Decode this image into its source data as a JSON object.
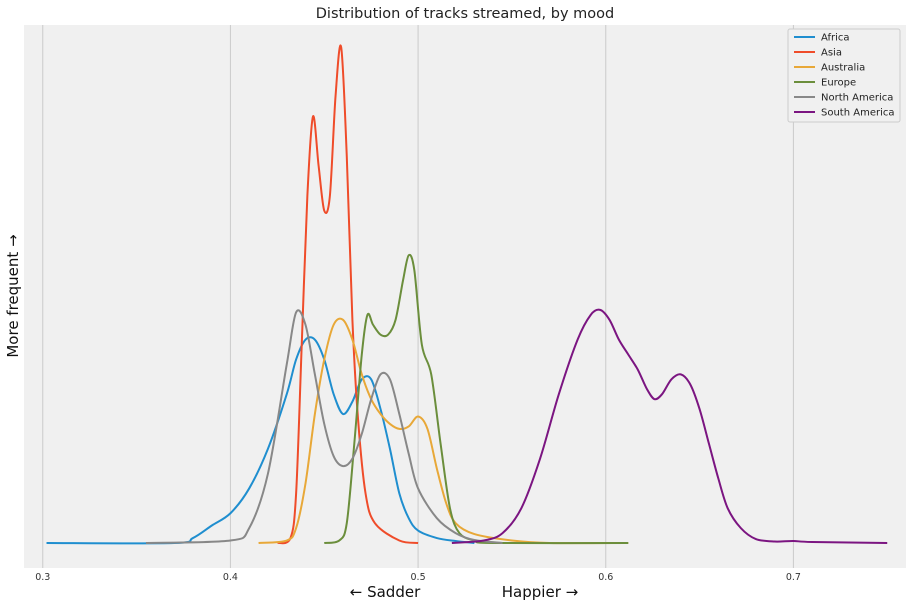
{
  "chart_data": {
    "type": "line",
    "title": "Distribution of tracks streamed, by mood",
    "xlabel_left": "← Sadder",
    "xlabel_right": "Happier →",
    "ylabel": "More frequent →",
    "xlim": [
      0.29,
      0.76
    ],
    "ylim": [
      0,
      1.05
    ],
    "x_ticks": [
      "0.3",
      "0.4",
      "0.5",
      "0.6",
      "0.7"
    ],
    "x_tick_values": [
      0.3,
      0.4,
      0.5,
      0.6,
      0.7
    ],
    "grid": "vertical",
    "legend_position": "top-right",
    "series": [
      {
        "name": "Africa",
        "color": "#1f8ecf",
        "points": [
          [
            0.302,
            0.0
          ],
          [
            0.37,
            0.0
          ],
          [
            0.38,
            0.01
          ],
          [
            0.39,
            0.035
          ],
          [
            0.4,
            0.06
          ],
          [
            0.41,
            0.11
          ],
          [
            0.42,
            0.19
          ],
          [
            0.43,
            0.3
          ],
          [
            0.435,
            0.37
          ],
          [
            0.44,
            0.41
          ],
          [
            0.445,
            0.41
          ],
          [
            0.45,
            0.37
          ],
          [
            0.455,
            0.3
          ],
          [
            0.46,
            0.26
          ],
          [
            0.465,
            0.285
          ],
          [
            0.47,
            0.33
          ],
          [
            0.475,
            0.33
          ],
          [
            0.48,
            0.27
          ],
          [
            0.485,
            0.19
          ],
          [
            0.49,
            0.1
          ],
          [
            0.495,
            0.05
          ],
          [
            0.5,
            0.025
          ],
          [
            0.51,
            0.01
          ],
          [
            0.52,
            0.004
          ],
          [
            0.53,
            0.0
          ]
        ]
      },
      {
        "name": "Asia",
        "color": "#ef4c2a",
        "points": [
          [
            0.425,
            0.0
          ],
          [
            0.432,
            0.01
          ],
          [
            0.435,
            0.1
          ],
          [
            0.438,
            0.4
          ],
          [
            0.441,
            0.7
          ],
          [
            0.444,
            0.86
          ],
          [
            0.447,
            0.76
          ],
          [
            0.45,
            0.67
          ],
          [
            0.453,
            0.7
          ],
          [
            0.456,
            0.9
          ],
          [
            0.459,
            1.0
          ],
          [
            0.462,
            0.78
          ],
          [
            0.465,
            0.45
          ],
          [
            0.468,
            0.25
          ],
          [
            0.472,
            0.1
          ],
          [
            0.477,
            0.04
          ],
          [
            0.49,
            0.005
          ],
          [
            0.5,
            0.0
          ]
        ]
      },
      {
        "name": "Australia",
        "color": "#e8a838",
        "points": [
          [
            0.415,
            0.0
          ],
          [
            0.43,
            0.005
          ],
          [
            0.435,
            0.03
          ],
          [
            0.44,
            0.12
          ],
          [
            0.445,
            0.26
          ],
          [
            0.45,
            0.37
          ],
          [
            0.455,
            0.44
          ],
          [
            0.46,
            0.45
          ],
          [
            0.465,
            0.41
          ],
          [
            0.47,
            0.34
          ],
          [
            0.475,
            0.29
          ],
          [
            0.48,
            0.26
          ],
          [
            0.485,
            0.24
          ],
          [
            0.49,
            0.23
          ],
          [
            0.495,
            0.235
          ],
          [
            0.5,
            0.255
          ],
          [
            0.505,
            0.23
          ],
          [
            0.51,
            0.15
          ],
          [
            0.515,
            0.08
          ],
          [
            0.52,
            0.04
          ],
          [
            0.53,
            0.018
          ],
          [
            0.55,
            0.005
          ],
          [
            0.57,
            0.0
          ],
          [
            0.612,
            0.0
          ]
        ]
      },
      {
        "name": "Europe",
        "color": "#6b8e3c",
        "points": [
          [
            0.45,
            0.0
          ],
          [
            0.458,
            0.005
          ],
          [
            0.462,
            0.04
          ],
          [
            0.466,
            0.2
          ],
          [
            0.47,
            0.38
          ],
          [
            0.473,
            0.46
          ],
          [
            0.476,
            0.44
          ],
          [
            0.48,
            0.42
          ],
          [
            0.484,
            0.42
          ],
          [
            0.488,
            0.45
          ],
          [
            0.492,
            0.53
          ],
          [
            0.495,
            0.58
          ],
          [
            0.498,
            0.55
          ],
          [
            0.502,
            0.4
          ],
          [
            0.507,
            0.34
          ],
          [
            0.512,
            0.2
          ],
          [
            0.517,
            0.07
          ],
          [
            0.522,
            0.02
          ],
          [
            0.53,
            0.005
          ],
          [
            0.54,
            0.0
          ],
          [
            0.612,
            0.0
          ]
        ]
      },
      {
        "name": "North America",
        "color": "#888888",
        "points": [
          [
            0.355,
            0.0
          ],
          [
            0.4,
            0.005
          ],
          [
            0.41,
            0.03
          ],
          [
            0.42,
            0.14
          ],
          [
            0.43,
            0.36
          ],
          [
            0.435,
            0.465
          ],
          [
            0.44,
            0.44
          ],
          [
            0.445,
            0.34
          ],
          [
            0.45,
            0.24
          ],
          [
            0.455,
            0.175
          ],
          [
            0.46,
            0.155
          ],
          [
            0.465,
            0.17
          ],
          [
            0.47,
            0.22
          ],
          [
            0.475,
            0.29
          ],
          [
            0.48,
            0.34
          ],
          [
            0.485,
            0.33
          ],
          [
            0.49,
            0.26
          ],
          [
            0.495,
            0.18
          ],
          [
            0.5,
            0.11
          ],
          [
            0.51,
            0.05
          ],
          [
            0.52,
            0.02
          ],
          [
            0.53,
            0.006
          ],
          [
            0.545,
            0.0
          ]
        ]
      },
      {
        "name": "South America",
        "color": "#7b1581",
        "points": [
          [
            0.518,
            0.0
          ],
          [
            0.535,
            0.005
          ],
          [
            0.545,
            0.02
          ],
          [
            0.555,
            0.07
          ],
          [
            0.565,
            0.17
          ],
          [
            0.575,
            0.3
          ],
          [
            0.585,
            0.41
          ],
          [
            0.592,
            0.46
          ],
          [
            0.597,
            0.47
          ],
          [
            0.602,
            0.45
          ],
          [
            0.607,
            0.41
          ],
          [
            0.612,
            0.38
          ],
          [
            0.617,
            0.35
          ],
          [
            0.622,
            0.31
          ],
          [
            0.626,
            0.29
          ],
          [
            0.63,
            0.3
          ],
          [
            0.635,
            0.33
          ],
          [
            0.64,
            0.34
          ],
          [
            0.645,
            0.32
          ],
          [
            0.65,
            0.27
          ],
          [
            0.655,
            0.2
          ],
          [
            0.66,
            0.13
          ],
          [
            0.665,
            0.07
          ],
          [
            0.672,
            0.03
          ],
          [
            0.68,
            0.008
          ],
          [
            0.69,
            0.003
          ],
          [
            0.7,
            0.004
          ],
          [
            0.71,
            0.002
          ],
          [
            0.75,
            0.0
          ]
        ]
      }
    ]
  }
}
